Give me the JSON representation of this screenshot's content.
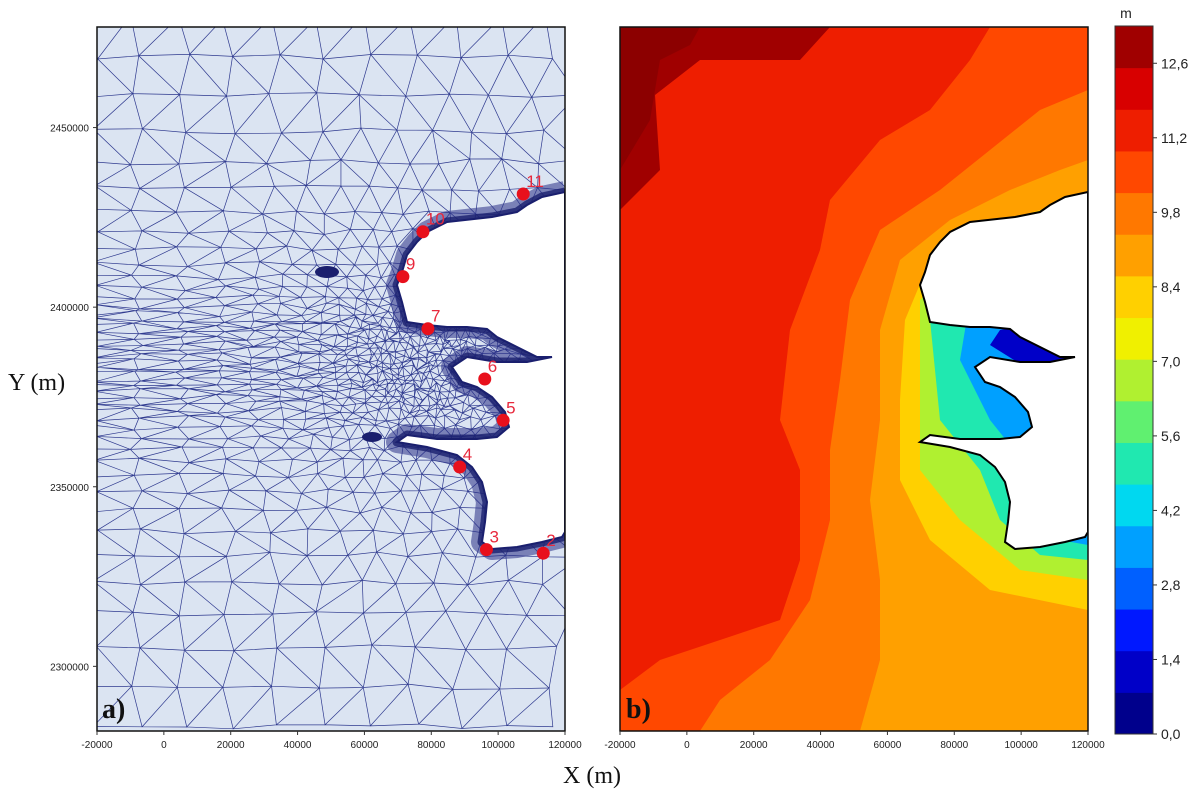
{
  "figure": {
    "x_label": "X (m)",
    "y_label": "Y (m)"
  },
  "panel_a": {
    "label": "a)",
    "x_ticks": [
      "-20000",
      "0",
      "20000",
      "40000",
      "60000",
      "80000",
      "100000",
      "120000"
    ],
    "y_ticks": [
      "2450000",
      "2400000",
      "2350000",
      "2300000"
    ],
    "x_range": [
      -20000,
      120000
    ],
    "y_range": [
      2282000,
      2478000
    ],
    "stations": [
      {
        "label": "2",
        "x": 113500,
        "y": 2331500
      },
      {
        "label": "3",
        "x": 96500,
        "y": 2332500
      },
      {
        "label": "4",
        "x": 88500,
        "y": 2355500
      },
      {
        "label": "5",
        "x": 101500,
        "y": 2368500
      },
      {
        "label": "6",
        "x": 96000,
        "y": 2380000
      },
      {
        "label": "7",
        "x": 79000,
        "y": 2394000
      },
      {
        "label": "9",
        "x": 71500,
        "y": 2408500
      },
      {
        "label": "10",
        "x": 77500,
        "y": 2421000
      },
      {
        "label": "11",
        "x": 107500,
        "y": 2431500
      }
    ],
    "colors": {
      "mesh_bg": "#dbe4f2",
      "mesh_line": "#2f3a8f",
      "land": "#ffffff",
      "station": "#e8101c"
    }
  },
  "panel_b": {
    "label": "b)",
    "x_ticks": [
      "-20000",
      "0",
      "20000",
      "40000",
      "60000",
      "80000",
      "100000",
      "120000"
    ],
    "x_range": [
      -20000,
      120000
    ],
    "colorbar": {
      "unit": "m",
      "ticks": [
        "12,6",
        "11,2",
        "9,8",
        "8,4",
        "7,0",
        "5,6",
        "4,2",
        "2,8",
        "1,4",
        "0,0"
      ],
      "range": [
        0.0,
        13.3
      ],
      "colors": [
        "#00008c",
        "#0000c8",
        "#0018ff",
        "#0060ff",
        "#00a0ff",
        "#00d8f0",
        "#20e8b0",
        "#60f070",
        "#b0f030",
        "#f0f000",
        "#ffd000",
        "#ffa000",
        "#ff7800",
        "#ff4800",
        "#ee1e00",
        "#d80000",
        "#a00000"
      ]
    }
  },
  "chart_data": {
    "type": "scatter",
    "title": "",
    "xlabel": "X (m)",
    "ylabel": "Y (m)",
    "xlim": [
      -20000,
      120000
    ],
    "ylim": [
      2282000,
      2478000
    ],
    "series": [
      {
        "x": [
          113500,
          96500,
          88500,
          101500,
          96000,
          79000,
          71500,
          77500,
          107500
        ],
        "y": [
          2331500,
          2332500,
          2355500,
          2368500,
          2380000,
          2394000,
          2408500,
          2421000,
          2431500
        ],
        "labels": [
          "2",
          "3",
          "4",
          "5",
          "6",
          "7",
          "9",
          "10",
          "11"
        ]
      }
    ]
  }
}
